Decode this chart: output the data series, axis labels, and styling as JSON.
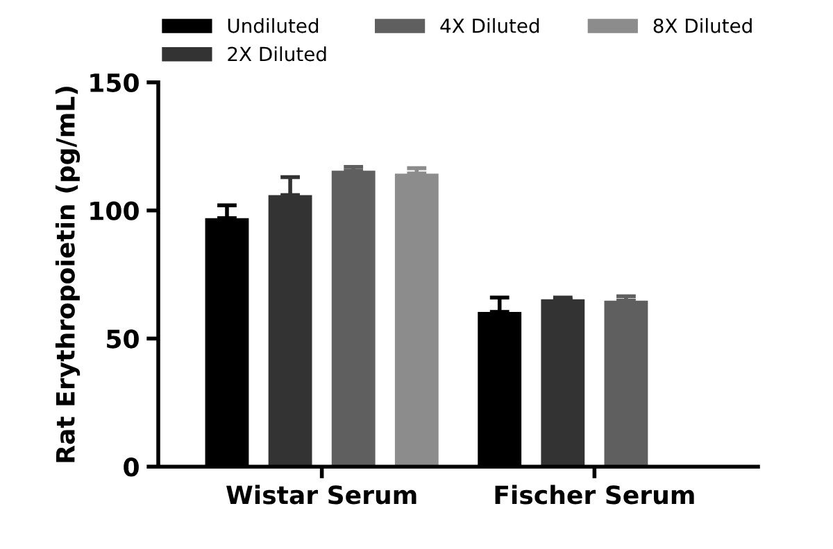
{
  "chart_data": {
    "type": "bar",
    "ylabel": "Rat Erythropoietin (pg/mL)",
    "categories": [
      "Wistar Serum",
      "Fischer Serum"
    ],
    "series": [
      {
        "name": "Undiluted",
        "color": "#000000",
        "values": [
          97,
          60.4
        ],
        "errors": [
          [
            97,
            102
          ],
          [
            60.4,
            66
          ]
        ]
      },
      {
        "name": "2X Diluted",
        "color": "#333333",
        "values": [
          106,
          65.3
        ],
        "errors": [
          [
            106,
            113
          ],
          [
            65.3,
            66
          ]
        ]
      },
      {
        "name": "4X Diluted",
        "color": "#5f5f5f",
        "values": [
          115.5,
          64.8
        ],
        "errors": [
          [
            115.5,
            117
          ],
          [
            64.8,
            66.5
          ]
        ]
      },
      {
        "name": "8X Diluted",
        "color": "#8c8c8c",
        "values": [
          114.4,
          null
        ],
        "errors": [
          [
            114.4,
            116.5
          ],
          null
        ]
      }
    ],
    "ylim": [
      0,
      150
    ],
    "yticks": [
      0,
      50,
      100,
      150
    ],
    "grid": false,
    "legend": "top"
  }
}
